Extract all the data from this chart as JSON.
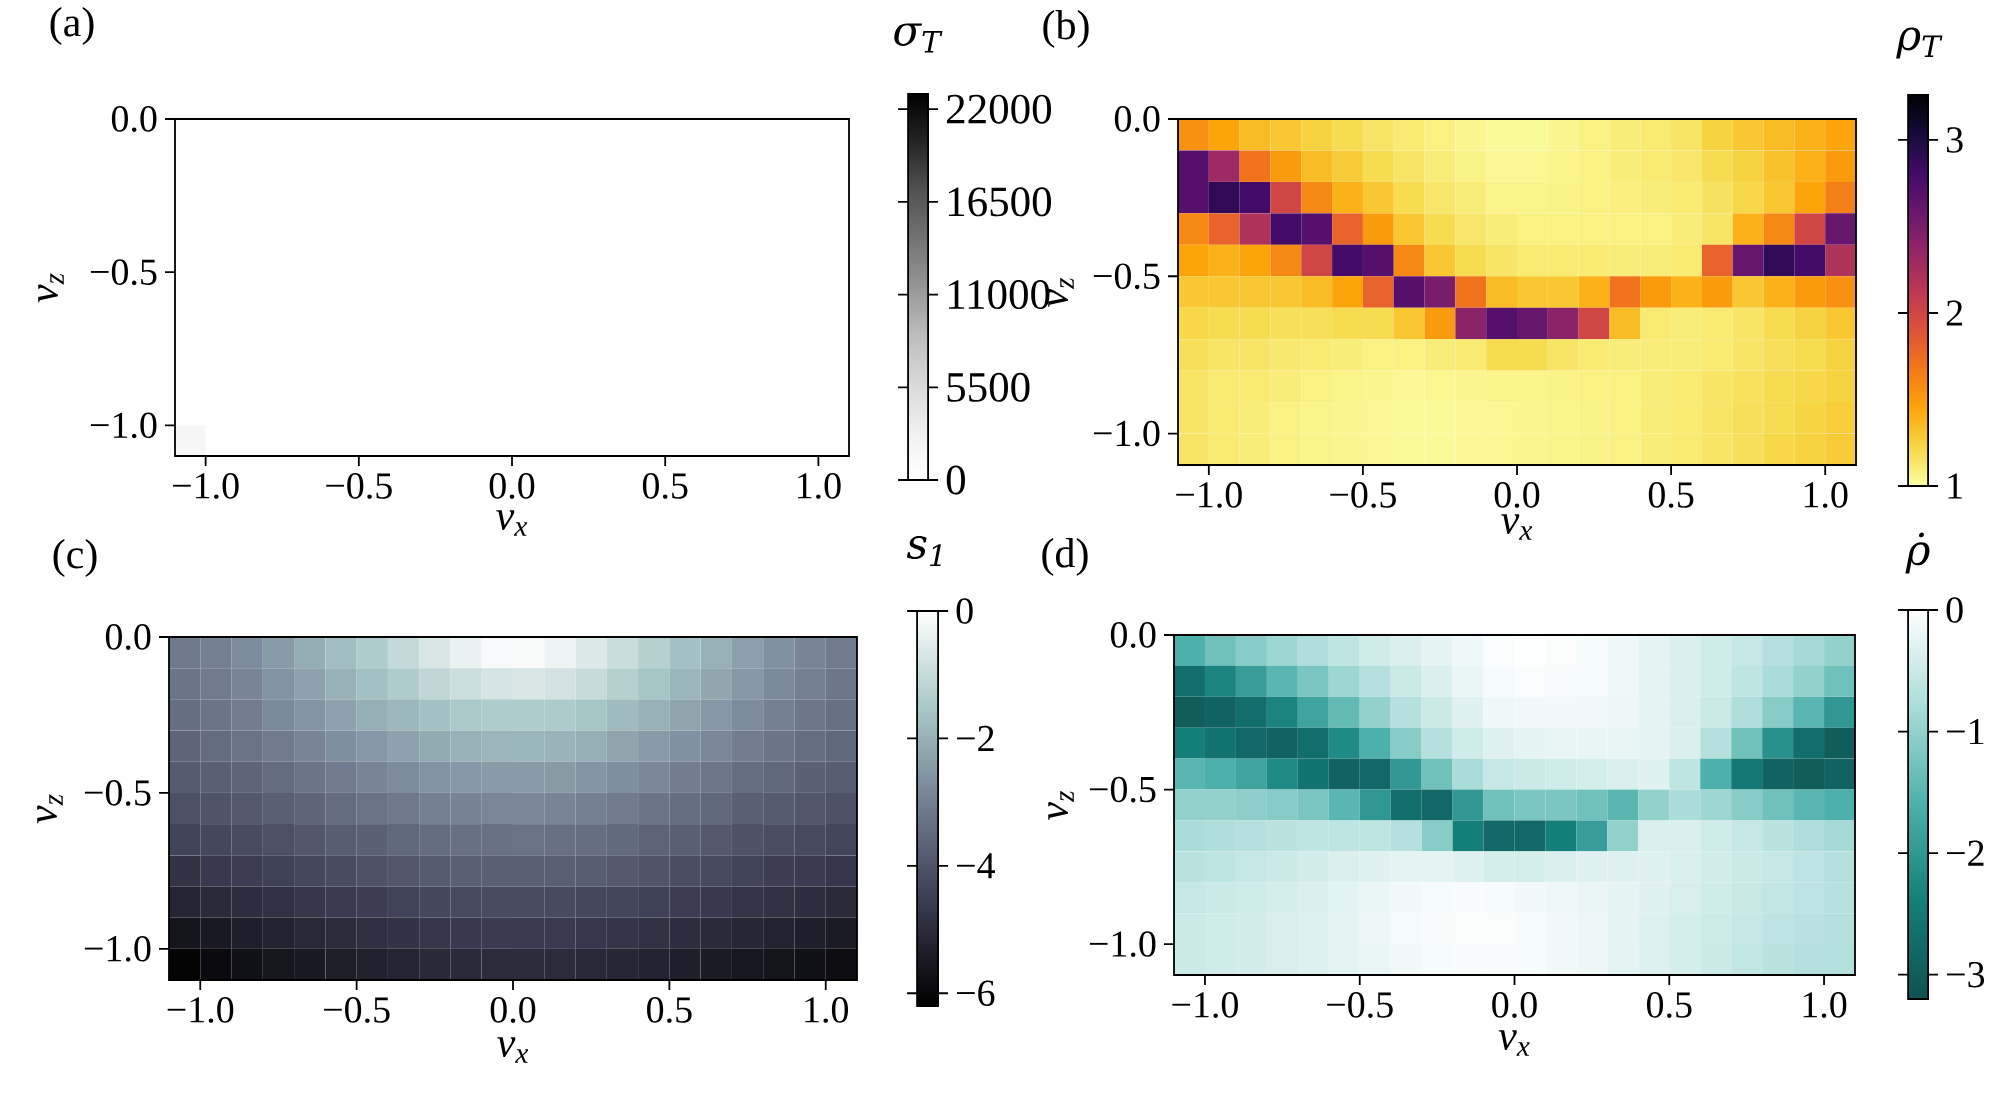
{
  "chart_data": [
    {
      "type": "heatmap",
      "title": "(a)",
      "xlabel": "v$_{x}$",
      "ylabel": "v$_{z}$",
      "clabel": "σ$_{T}$",
      "x": [
        -1.05,
        -0.95,
        -0.85,
        -0.75,
        -0.65,
        -0.55,
        -0.45,
        -0.35,
        -0.25,
        -0.15,
        -0.05,
        0.05,
        0.15,
        0.25,
        0.35,
        0.45,
        0.55,
        0.65,
        0.75,
        0.85,
        0.95,
        1.05
      ],
      "y": [
        -0.05,
        -0.15,
        -0.25,
        -0.35,
        -0.45,
        -0.55,
        -0.65,
        -0.75,
        -0.85,
        -0.95,
        -1.05
      ],
      "xlim": [
        -1.1,
        1.1
      ],
      "ylim": [
        -1.1,
        0
      ],
      "xticks": [
        {
          "value": -1,
          "label": "−1.0"
        },
        {
          "value": -0.5,
          "label": "−0.5"
        },
        {
          "value": 0,
          "label": "0.0"
        },
        {
          "value": 0.5,
          "label": "0.5"
        },
        {
          "value": 1,
          "label": "1.0"
        }
      ],
      "yticks": [
        {
          "value": -1,
          "label": "−1.0"
        },
        {
          "value": -0.5,
          "label": "−0.5"
        },
        {
          "value": 0,
          "label": "0.0"
        }
      ],
      "clim": [
        0,
        22900
      ],
      "cticks": [
        0,
        5500,
        11000,
        16500,
        22000
      ],
      "colors": [
        "#ffffff",
        "#f0f0f0",
        "#d9d9d9",
        "#bdbdbd",
        "#969696",
        "#737373",
        "#525252",
        "#252525",
        "#000000"
      ],
      "cells": [
        [
          0,
          0,
          0,
          0,
          0,
          0,
          0,
          0,
          0,
          0,
          0,
          0,
          0,
          0,
          0,
          0,
          0,
          0,
          0,
          0,
          0,
          0
        ],
        [
          0,
          0,
          0,
          0,
          0,
          0,
          0,
          0,
          0,
          0,
          0,
          0,
          0,
          0,
          0,
          0,
          0,
          0,
          0,
          0,
          0,
          0
        ],
        [
          0,
          0,
          0,
          0,
          0,
          0,
          0,
          0,
          0,
          0,
          0,
          0,
          0,
          0,
          0,
          0,
          0,
          0,
          0,
          0,
          0,
          0
        ],
        [
          0,
          0,
          0,
          0,
          0,
          0,
          0,
          0,
          0,
          0,
          0,
          0,
          0,
          0,
          0,
          0,
          0,
          0,
          0,
          0,
          0,
          0
        ],
        [
          0,
          0,
          0,
          0,
          0,
          0,
          0,
          0,
          0,
          0,
          0,
          0,
          0,
          0,
          0,
          0,
          0,
          0,
          0,
          0,
          0,
          0
        ],
        [
          0,
          0,
          0,
          0,
          0,
          0,
          0,
          0,
          0,
          0,
          0,
          0,
          0,
          0,
          0,
          0,
          0,
          0,
          0,
          0,
          0,
          0
        ],
        [
          0,
          0,
          0,
          0,
          0,
          0,
          0,
          0,
          0,
          0,
          0,
          0,
          0,
          0,
          0,
          0,
          0,
          0,
          0,
          0,
          0,
          0
        ],
        [
          0,
          0,
          0,
          0,
          0,
          0,
          0,
          0,
          0,
          0,
          0,
          0,
          0,
          0,
          0,
          0,
          0,
          0,
          0,
          0,
          0,
          0
        ],
        [
          0,
          0,
          0,
          0,
          0,
          0,
          0,
          0,
          0,
          0,
          0,
          0,
          0,
          0,
          0,
          0,
          0,
          0,
          0,
          0,
          0,
          0
        ],
        [
          0,
          0,
          0,
          0,
          0,
          0,
          0,
          0,
          0,
          0,
          0,
          0,
          0,
          0,
          0,
          0,
          0,
          0,
          0,
          0,
          0,
          0
        ],
        [
          1500,
          0,
          0,
          0,
          0,
          0,
          0,
          0,
          0,
          0,
          0,
          0,
          0,
          0,
          0,
          0,
          0,
          0,
          0,
          0,
          0,
          0
        ]
      ]
    },
    {
      "type": "heatmap",
      "title": "(b)",
      "xlabel": "v$_{x}$",
      "ylabel": "v$_{z}$",
      "clabel": "ρ$_{T}$",
      "x": [
        -1.05,
        -0.95,
        -0.85,
        -0.75,
        -0.65,
        -0.55,
        -0.45,
        -0.35,
        -0.25,
        -0.15,
        -0.05,
        0.05,
        0.15,
        0.25,
        0.35,
        0.45,
        0.55,
        0.65,
        0.75,
        0.85,
        0.95,
        1.05
      ],
      "y": [
        -0.05,
        -0.15,
        -0.25,
        -0.35,
        -0.45,
        -0.55,
        -0.65,
        -0.75,
        -0.85,
        -0.95,
        -1.05
      ],
      "xlim": [
        -1.1,
        1.1
      ],
      "ylim": [
        -1.1,
        0
      ],
      "xticks": [
        {
          "value": -1,
          "label": "−1.0"
        },
        {
          "value": -0.5,
          "label": "−0.5"
        },
        {
          "value": 0,
          "label": "0.0"
        },
        {
          "value": 0.5,
          "label": "0.5"
        },
        {
          "value": 1,
          "label": "1.0"
        }
      ],
      "yticks": [
        {
          "value": -1,
          "label": "−1.0"
        },
        {
          "value": -0.5,
          "label": "−0.5"
        },
        {
          "value": 0,
          "label": "0.0"
        }
      ],
      "clim": [
        1,
        3.26
      ],
      "cticks": [
        1,
        2,
        3
      ],
      "colors": [
        "#fcffa4",
        "#f6d746",
        "#fca50a",
        "#f37819",
        "#dd513a",
        "#bc3754",
        "#932667",
        "#6a176e",
        "#420a68",
        "#160b39",
        "#000004"
      ],
      "cells": [
        [
          1.55,
          1.45,
          1.35,
          1.3,
          1.25,
          1.2,
          1.15,
          1.12,
          1.08,
          1.05,
          1.03,
          1.03,
          1.05,
          1.08,
          1.1,
          1.12,
          1.15,
          1.25,
          1.3,
          1.35,
          1.4,
          1.45
        ],
        [
          2.7,
          2.3,
          1.7,
          1.5,
          1.35,
          1.28,
          1.2,
          1.15,
          1.1,
          1.07,
          1.04,
          1.04,
          1.06,
          1.08,
          1.1,
          1.12,
          1.14,
          1.2,
          1.25,
          1.32,
          1.4,
          1.5
        ],
        [
          2.7,
          2.9,
          2.8,
          2.0,
          1.6,
          1.4,
          1.3,
          1.2,
          1.14,
          1.1,
          1.06,
          1.06,
          1.07,
          1.08,
          1.09,
          1.1,
          1.12,
          1.16,
          1.22,
          1.3,
          1.45,
          1.65
        ],
        [
          1.6,
          1.8,
          2.2,
          2.8,
          2.7,
          1.8,
          1.5,
          1.3,
          1.2,
          1.14,
          1.1,
          1.08,
          1.08,
          1.08,
          1.08,
          1.08,
          1.1,
          1.15,
          1.4,
          1.6,
          2.0,
          2.6
        ],
        [
          1.45,
          1.4,
          1.45,
          1.6,
          2.0,
          2.8,
          2.7,
          1.6,
          1.3,
          1.2,
          1.15,
          1.12,
          1.12,
          1.12,
          1.1,
          1.1,
          1.12,
          1.8,
          2.6,
          2.9,
          2.8,
          2.2
        ],
        [
          1.3,
          1.3,
          1.3,
          1.3,
          1.35,
          1.45,
          1.8,
          2.7,
          2.5,
          1.7,
          1.35,
          1.3,
          1.3,
          1.4,
          1.7,
          1.5,
          1.4,
          1.5,
          1.3,
          1.4,
          1.5,
          1.55
        ],
        [
          1.22,
          1.2,
          1.2,
          1.18,
          1.18,
          1.2,
          1.2,
          1.3,
          1.5,
          2.4,
          2.7,
          2.6,
          2.4,
          2.0,
          1.35,
          1.12,
          1.1,
          1.12,
          1.15,
          1.2,
          1.25,
          1.3
        ],
        [
          1.18,
          1.15,
          1.15,
          1.13,
          1.12,
          1.1,
          1.08,
          1.08,
          1.1,
          1.12,
          1.2,
          1.2,
          1.15,
          1.12,
          1.1,
          1.1,
          1.1,
          1.12,
          1.15,
          1.18,
          1.2,
          1.25
        ],
        [
          1.15,
          1.12,
          1.12,
          1.1,
          1.08,
          1.06,
          1.05,
          1.04,
          1.04,
          1.05,
          1.06,
          1.06,
          1.07,
          1.08,
          1.08,
          1.1,
          1.12,
          1.15,
          1.17,
          1.2,
          1.22,
          1.25
        ],
        [
          1.15,
          1.12,
          1.1,
          1.08,
          1.06,
          1.05,
          1.04,
          1.03,
          1.03,
          1.04,
          1.04,
          1.05,
          1.06,
          1.07,
          1.08,
          1.1,
          1.12,
          1.15,
          1.18,
          1.2,
          1.24,
          1.27
        ],
        [
          1.15,
          1.12,
          1.1,
          1.08,
          1.06,
          1.05,
          1.04,
          1.03,
          1.03,
          1.04,
          1.04,
          1.05,
          1.06,
          1.07,
          1.08,
          1.1,
          1.12,
          1.15,
          1.18,
          1.22,
          1.25,
          1.28
        ]
      ]
    },
    {
      "type": "heatmap",
      "title": "(c)",
      "xlabel": "v$_{x}$",
      "ylabel": "v$_{z}$",
      "clabel": "s$_{1}$",
      "x": [
        -1.05,
        -0.95,
        -0.85,
        -0.75,
        -0.65,
        -0.55,
        -0.45,
        -0.35,
        -0.25,
        -0.15,
        -0.05,
        0.05,
        0.15,
        0.25,
        0.35,
        0.45,
        0.55,
        0.65,
        0.75,
        0.85,
        0.95,
        1.05
      ],
      "y": [
        -0.05,
        -0.15,
        -0.25,
        -0.35,
        -0.45,
        -0.55,
        -0.65,
        -0.75,
        -0.85,
        -0.95,
        -1.05
      ],
      "xlim": [
        -1.1,
        1.1
      ],
      "ylim": [
        -1.1,
        0
      ],
      "xticks": [
        {
          "value": -1,
          "label": "−1.0"
        },
        {
          "value": -0.5,
          "label": "−0.5"
        },
        {
          "value": 0,
          "label": "0.0"
        },
        {
          "value": 0.5,
          "label": "0.5"
        },
        {
          "value": 1,
          "label": "1.0"
        }
      ],
      "yticks": [
        {
          "value": -1,
          "label": "−1.0"
        },
        {
          "value": -0.5,
          "label": "−0.5"
        },
        {
          "value": 0,
          "label": "0.0"
        }
      ],
      "clim": [
        -6.2,
        0
      ],
      "cticks": [
        {
          "value": -6,
          "label": "−6"
        },
        {
          "value": -4,
          "label": "−4"
        },
        {
          "value": -2,
          "label": "−2"
        },
        0
      ],
      "colors": [
        "#000000",
        "#38384e",
        "#707b8f",
        "#a8c7c7",
        "#ffffff"
      ],
      "cells": [
        [
          -3.15,
          -3.0,
          -2.75,
          -2.45,
          -2.1,
          -1.75,
          -1.4,
          -1.05,
          -0.7,
          -0.4,
          -0.15,
          -0.1,
          -0.3,
          -0.6,
          -0.95,
          -1.3,
          -1.65,
          -2.0,
          -2.35,
          -2.65,
          -2.9,
          -3.1
        ],
        [
          -3.25,
          -3.1,
          -2.9,
          -2.6,
          -2.3,
          -2.0,
          -1.7,
          -1.4,
          -1.1,
          -0.9,
          -0.75,
          -0.7,
          -0.8,
          -1.0,
          -1.3,
          -1.6,
          -1.9,
          -2.2,
          -2.5,
          -2.8,
          -3.0,
          -3.2
        ],
        [
          -3.4,
          -3.25,
          -3.05,
          -2.8,
          -2.55,
          -2.3,
          -2.05,
          -1.85,
          -1.65,
          -1.5,
          -1.42,
          -1.4,
          -1.45,
          -1.6,
          -1.8,
          -2.0,
          -2.25,
          -2.5,
          -2.75,
          -3.0,
          -3.2,
          -3.35
        ],
        [
          -3.6,
          -3.45,
          -3.3,
          -3.1,
          -2.9,
          -2.7,
          -2.5,
          -2.3,
          -2.15,
          -2.0,
          -1.92,
          -1.9,
          -1.95,
          -2.05,
          -2.25,
          -2.45,
          -2.65,
          -2.85,
          -3.05,
          -3.25,
          -3.4,
          -3.55
        ],
        [
          -3.85,
          -3.75,
          -3.6,
          -3.45,
          -3.25,
          -3.1,
          -2.9,
          -2.75,
          -2.6,
          -2.5,
          -2.42,
          -2.4,
          -2.45,
          -2.55,
          -2.7,
          -2.85,
          -3.05,
          -3.2,
          -3.4,
          -3.55,
          -3.7,
          -3.8
        ],
        [
          -4.1,
          -4.0,
          -3.9,
          -3.75,
          -3.6,
          -3.45,
          -3.3,
          -3.15,
          -3.0,
          -2.92,
          -2.87,
          -2.85,
          -2.9,
          -3.0,
          -3.1,
          -3.25,
          -3.4,
          -3.55,
          -3.7,
          -3.85,
          -3.95,
          -4.05
        ],
        [
          -4.4,
          -4.3,
          -4.2,
          -4.1,
          -3.95,
          -3.8,
          -3.7,
          -3.55,
          -3.45,
          -3.35,
          -3.32,
          -3.3,
          -3.35,
          -3.4,
          -3.5,
          -3.65,
          -3.75,
          -3.9,
          -4.05,
          -4.15,
          -4.25,
          -4.35
        ],
        [
          -4.8,
          -4.65,
          -4.55,
          -4.45,
          -4.3,
          -4.2,
          -4.05,
          -3.95,
          -3.85,
          -3.75,
          -3.72,
          -3.7,
          -3.75,
          -3.8,
          -3.9,
          -4.0,
          -4.15,
          -4.25,
          -4.4,
          -4.5,
          -4.6,
          -4.7
        ],
        [
          -5.2,
          -5.05,
          -4.95,
          -4.85,
          -4.7,
          -4.6,
          -4.5,
          -4.4,
          -4.3,
          -4.25,
          -4.2,
          -4.2,
          -4.22,
          -4.3,
          -4.35,
          -4.45,
          -4.55,
          -4.65,
          -4.75,
          -4.85,
          -4.95,
          -5.05
        ],
        [
          -5.65,
          -5.5,
          -5.35,
          -5.25,
          -5.1,
          -5.0,
          -4.9,
          -4.8,
          -4.7,
          -4.65,
          -4.6,
          -4.6,
          -4.62,
          -4.68,
          -4.75,
          -4.85,
          -4.95,
          -5.05,
          -5.15,
          -5.25,
          -5.35,
          -5.45
        ],
        [
          -6.1,
          -5.9,
          -5.75,
          -5.6,
          -5.5,
          -5.4,
          -5.3,
          -5.2,
          -5.1,
          -5.05,
          -5.0,
          -5.0,
          -5.02,
          -5.08,
          -5.15,
          -5.25,
          -5.35,
          -5.45,
          -5.55,
          -5.65,
          -5.75,
          -5.85
        ]
      ]
    },
    {
      "type": "heatmap",
      "title": "(d)",
      "xlabel": "v$_{x}$",
      "ylabel": "v$_{z}$",
      "clabel": "ρ̇",
      "x": [
        -1.05,
        -0.95,
        -0.85,
        -0.75,
        -0.65,
        -0.55,
        -0.45,
        -0.35,
        -0.25,
        -0.15,
        -0.05,
        0.05,
        0.15,
        0.25,
        0.35,
        0.45,
        0.55,
        0.65,
        0.75,
        0.85,
        0.95,
        1.05
      ],
      "y": [
        -0.05,
        -0.15,
        -0.25,
        -0.35,
        -0.45,
        -0.55,
        -0.65,
        -0.75,
        -0.85,
        -0.95,
        -1.05
      ],
      "xlim": [
        -1.1,
        1.1
      ],
      "ylim": [
        -1.1,
        0
      ],
      "xticks": [
        {
          "value": -1,
          "label": "−1.0"
        },
        {
          "value": -0.5,
          "label": "−0.5"
        },
        {
          "value": 0,
          "label": "0.0"
        },
        {
          "value": 0.5,
          "label": "0.5"
        },
        {
          "value": 1,
          "label": "1.0"
        }
      ],
      "yticks": [
        {
          "value": -1,
          "label": "−1.0"
        },
        {
          "value": -0.5,
          "label": "−0.5"
        },
        {
          "value": 0,
          "label": "0.0"
        }
      ],
      "clim": [
        -3.2,
        0
      ],
      "cticks": [
        {
          "value": -3,
          "label": "−3"
        },
        {
          "value": -2,
          "label": "−2"
        },
        {
          "value": -1,
          "label": "−1"
        },
        0
      ],
      "colors": [
        "#0f5252",
        "#147e79",
        "#4db0aa",
        "#aadcd9",
        "#ffffff"
      ],
      "cells": [
        [
          -1.6,
          -1.3,
          -1.1,
          -0.9,
          -0.75,
          -0.6,
          -0.45,
          -0.35,
          -0.25,
          -0.15,
          -0.05,
          -0.02,
          -0.04,
          -0.08,
          -0.15,
          -0.25,
          -0.35,
          -0.45,
          -0.55,
          -0.7,
          -0.85,
          -1.0
        ],
        [
          -2.7,
          -2.3,
          -1.9,
          -1.5,
          -1.2,
          -0.9,
          -0.7,
          -0.5,
          -0.35,
          -0.2,
          -0.08,
          -0.05,
          -0.06,
          -0.1,
          -0.15,
          -0.25,
          -0.35,
          -0.45,
          -0.6,
          -0.8,
          -1.0,
          -1.3
        ],
        [
          -3.0,
          -2.9,
          -2.7,
          -2.3,
          -1.8,
          -1.4,
          -1.0,
          -0.7,
          -0.5,
          -0.3,
          -0.15,
          -0.12,
          -0.12,
          -0.14,
          -0.18,
          -0.25,
          -0.35,
          -0.5,
          -0.75,
          -1.1,
          -1.5,
          -2.0
        ],
        [
          -2.4,
          -2.6,
          -2.8,
          -2.9,
          -2.7,
          -2.2,
          -1.6,
          -1.1,
          -0.7,
          -0.45,
          -0.3,
          -0.25,
          -0.22,
          -0.22,
          -0.22,
          -0.25,
          -0.35,
          -0.7,
          -1.3,
          -2.1,
          -2.7,
          -3.0
        ],
        [
          -1.5,
          -1.6,
          -1.8,
          -2.2,
          -2.6,
          -2.9,
          -2.8,
          -2.0,
          -1.3,
          -0.8,
          -0.55,
          -0.5,
          -0.45,
          -0.4,
          -0.35,
          -0.3,
          -0.6,
          -1.6,
          -2.5,
          -2.9,
          -3.0,
          -2.9
        ],
        [
          -1.0,
          -1.0,
          -1.05,
          -1.1,
          -1.2,
          -1.5,
          -2.0,
          -2.7,
          -2.8,
          -2.0,
          -1.3,
          -1.2,
          -1.2,
          -1.3,
          -1.5,
          -1.0,
          -0.8,
          -0.9,
          -1.1,
          -1.3,
          -1.5,
          -1.6
        ],
        [
          -0.8,
          -0.75,
          -0.7,
          -0.65,
          -0.6,
          -0.6,
          -0.6,
          -0.7,
          -1.1,
          -2.4,
          -2.8,
          -2.8,
          -2.4,
          -1.9,
          -1.0,
          -0.35,
          -0.35,
          -0.45,
          -0.55,
          -0.65,
          -0.75,
          -0.85
        ],
        [
          -0.65,
          -0.6,
          -0.55,
          -0.5,
          -0.42,
          -0.35,
          -0.3,
          -0.25,
          -0.25,
          -0.3,
          -0.4,
          -0.4,
          -0.35,
          -0.3,
          -0.3,
          -0.3,
          -0.35,
          -0.42,
          -0.5,
          -0.55,
          -0.62,
          -0.7
        ],
        [
          -0.55,
          -0.5,
          -0.45,
          -0.4,
          -0.35,
          -0.28,
          -0.2,
          -0.12,
          -0.08,
          -0.06,
          -0.08,
          -0.12,
          -0.15,
          -0.2,
          -0.25,
          -0.3,
          -0.38,
          -0.45,
          -0.52,
          -0.58,
          -0.62,
          -0.68
        ],
        [
          -0.5,
          -0.45,
          -0.42,
          -0.38,
          -0.32,
          -0.25,
          -0.18,
          -0.1,
          -0.06,
          -0.04,
          -0.04,
          -0.08,
          -0.12,
          -0.18,
          -0.25,
          -0.32,
          -0.4,
          -0.48,
          -0.55,
          -0.62,
          -0.66,
          -0.7
        ],
        [
          -0.5,
          -0.45,
          -0.42,
          -0.38,
          -0.32,
          -0.25,
          -0.2,
          -0.12,
          -0.08,
          -0.06,
          -0.06,
          -0.08,
          -0.12,
          -0.18,
          -0.25,
          -0.32,
          -0.4,
          -0.5,
          -0.58,
          -0.65,
          -0.7,
          -0.72
        ]
      ]
    }
  ]
}
